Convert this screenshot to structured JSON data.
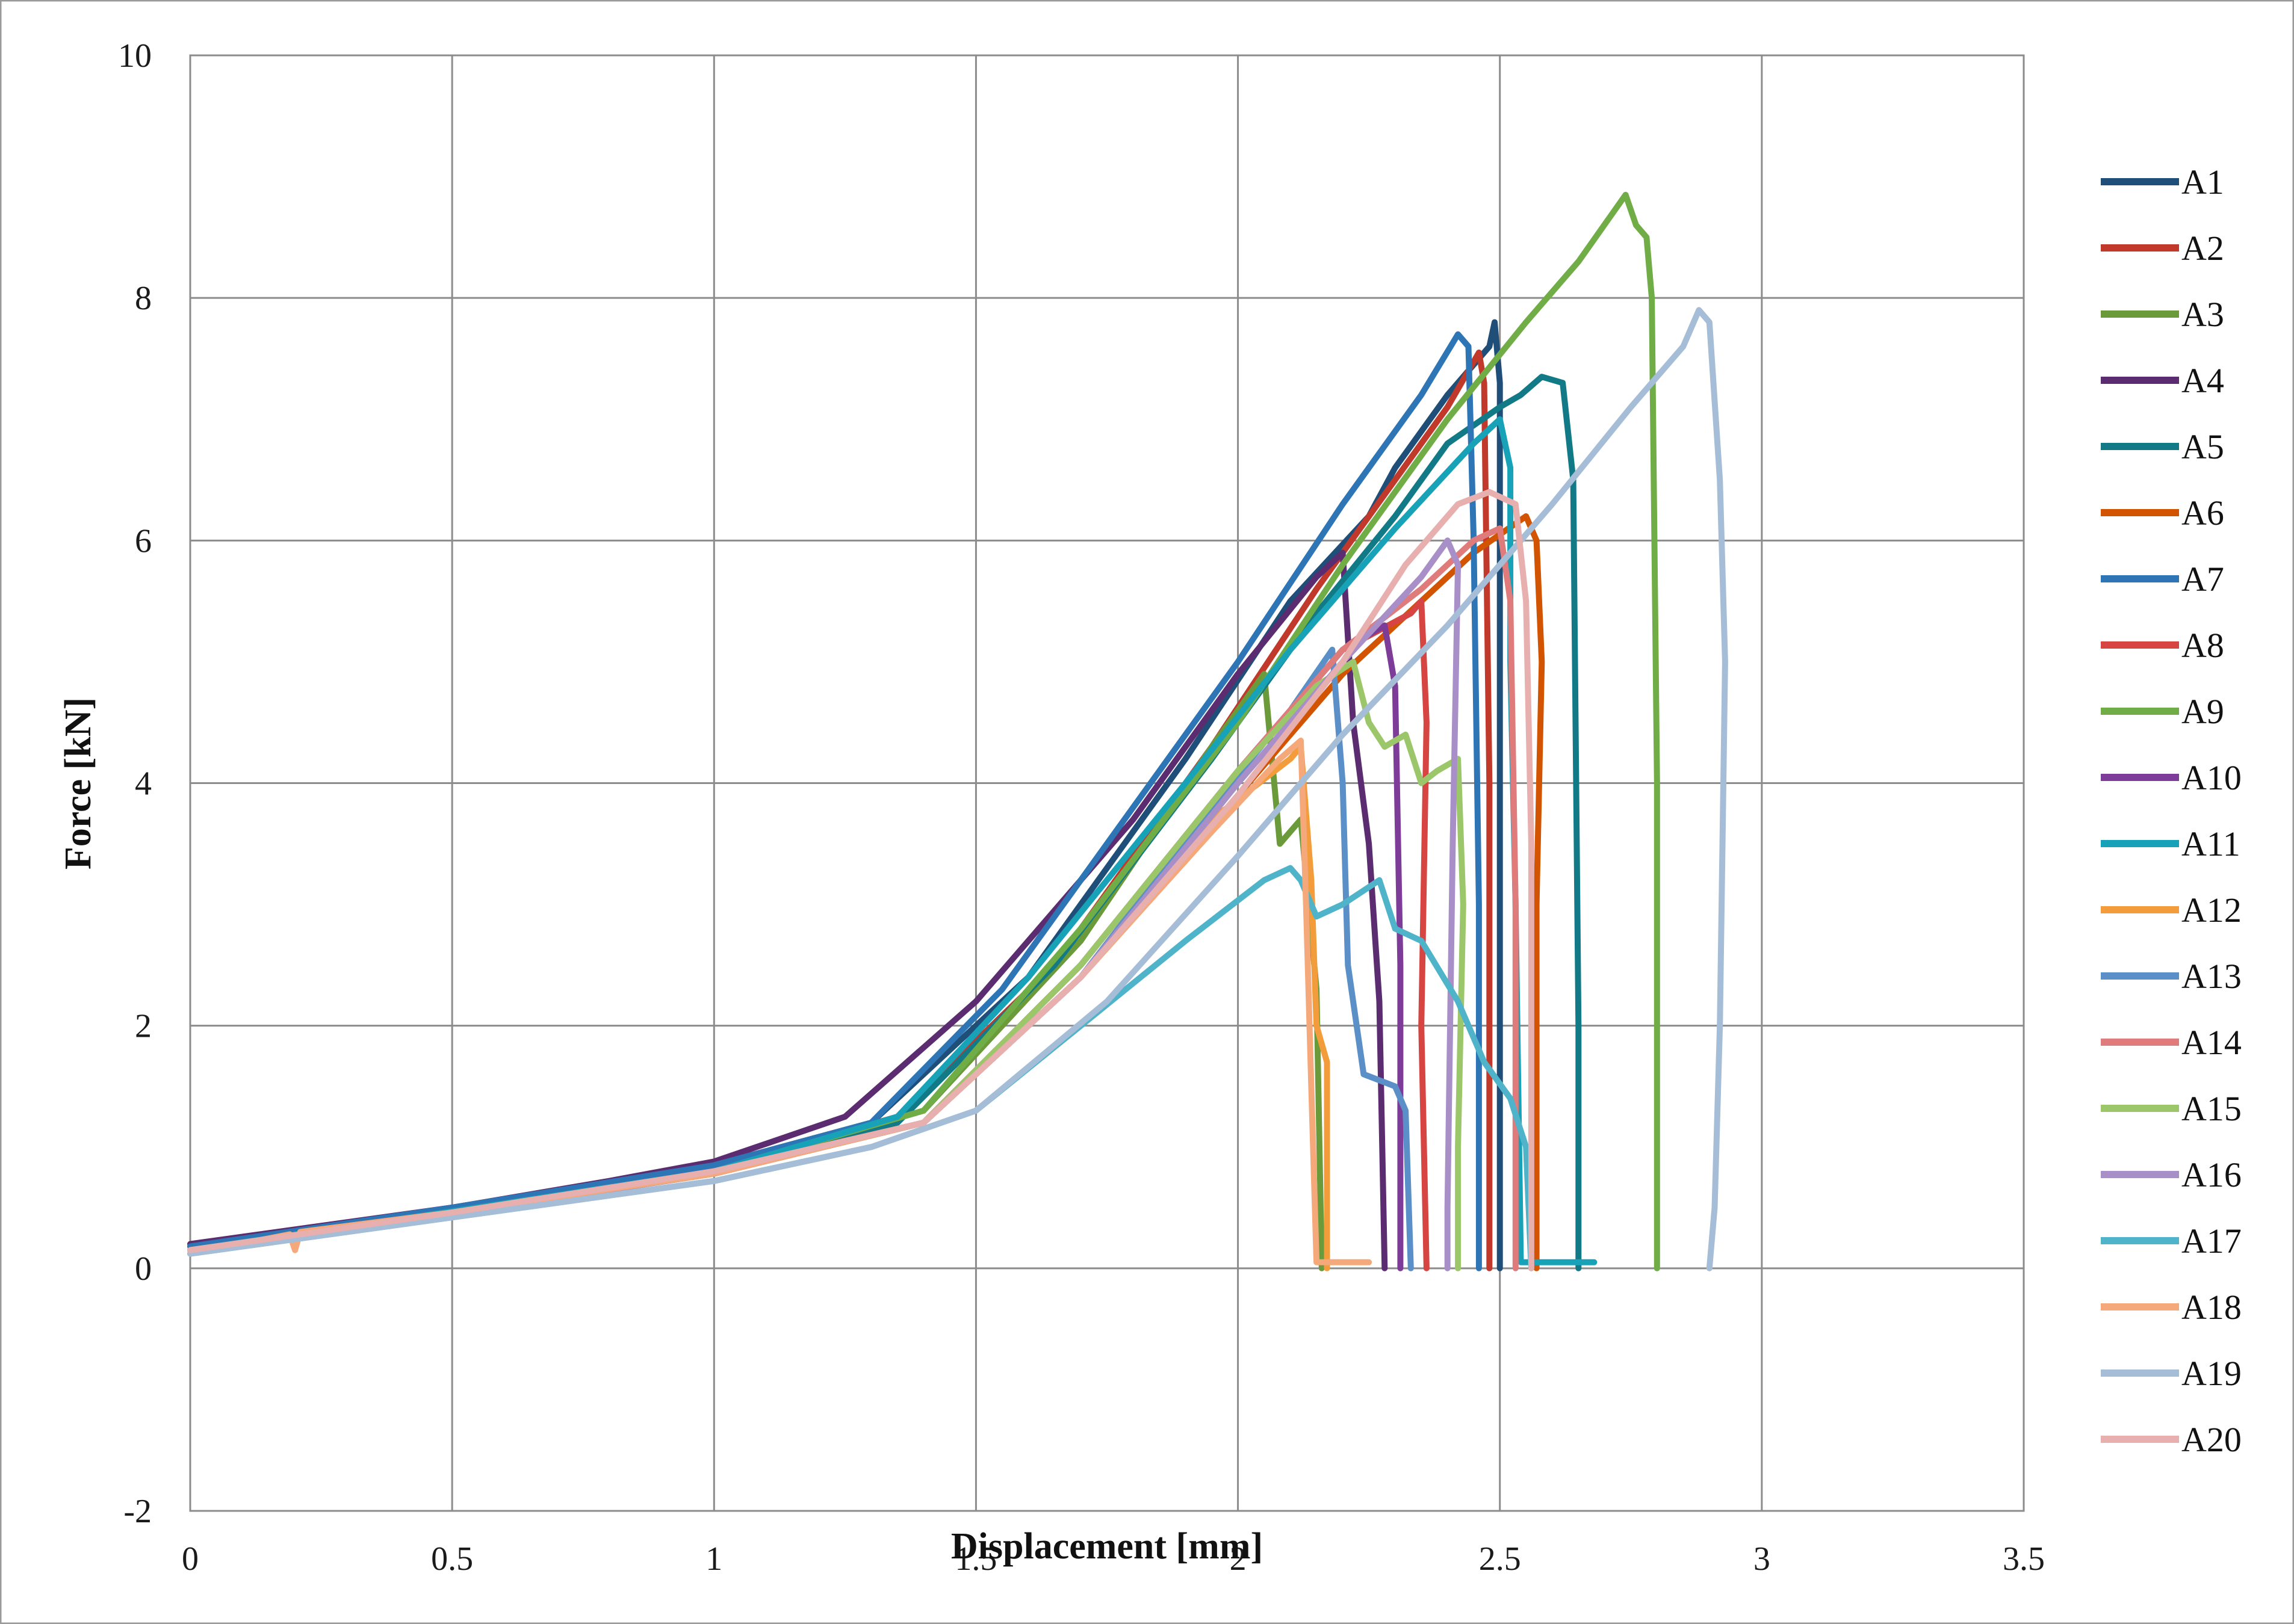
{
  "chart_data": {
    "type": "line",
    "title": "",
    "xlabel": "Displacement [mm]",
    "ylabel": "Force [kN]",
    "xlim": [
      0,
      3.5
    ],
    "ylim": [
      -2,
      10
    ],
    "xticks": [
      "0",
      "0.5",
      "1",
      "1.5",
      "2",
      "2.5",
      "3",
      "3.5"
    ],
    "yticks": [
      "-2",
      "0",
      "2",
      "4",
      "6",
      "8",
      "10"
    ],
    "grid": true,
    "legend_position": "right",
    "series": [
      {
        "name": "A1",
        "color": "#1F4E79",
        "points": [
          [
            0,
            0.18
          ],
          [
            0.5,
            0.5
          ],
          [
            1,
            0.85
          ],
          [
            1.3,
            1.2
          ],
          [
            1.6,
            2.4
          ],
          [
            1.9,
            4.2
          ],
          [
            2.1,
            5.5
          ],
          [
            2.25,
            6.2
          ],
          [
            2.3,
            6.6
          ],
          [
            2.4,
            7.2
          ],
          [
            2.48,
            7.6
          ],
          [
            2.49,
            7.8
          ],
          [
            2.5,
            7.3
          ],
          [
            2.5,
            2.0
          ],
          [
            2.5,
            0.0
          ]
        ]
      },
      {
        "name": "A2",
        "color": "#C0392B",
        "points": [
          [
            0,
            0.15
          ],
          [
            0.5,
            0.48
          ],
          [
            1,
            0.82
          ],
          [
            1.35,
            1.25
          ],
          [
            1.65,
            2.5
          ],
          [
            1.95,
            4.3
          ],
          [
            2.15,
            5.6
          ],
          [
            2.3,
            6.5
          ],
          [
            2.4,
            7.1
          ],
          [
            2.46,
            7.55
          ],
          [
            2.47,
            7.3
          ],
          [
            2.48,
            4.0
          ],
          [
            2.48,
            0.0
          ]
        ]
      },
      {
        "name": "A3",
        "color": "#6A9A3A",
        "points": [
          [
            0,
            0.15
          ],
          [
            0.5,
            0.46
          ],
          [
            1,
            0.8
          ],
          [
            1.4,
            1.3
          ],
          [
            1.7,
            2.7
          ],
          [
            1.95,
            4.3
          ],
          [
            2.05,
            4.9
          ],
          [
            2.08,
            3.5
          ],
          [
            2.12,
            3.7
          ],
          [
            2.15,
            2.3
          ],
          [
            2.16,
            0.0
          ]
        ]
      },
      {
        "name": "A4",
        "color": "#5B2C6F",
        "points": [
          [
            0,
            0.2
          ],
          [
            0.5,
            0.5
          ],
          [
            0.8,
            0.72
          ],
          [
            1,
            0.88
          ],
          [
            1.25,
            1.25
          ],
          [
            1.5,
            2.2
          ],
          [
            1.8,
            3.7
          ],
          [
            2.0,
            4.9
          ],
          [
            2.15,
            5.7
          ],
          [
            2.2,
            5.9
          ],
          [
            2.22,
            4.5
          ],
          [
            2.25,
            3.5
          ],
          [
            2.27,
            2.2
          ],
          [
            2.28,
            0.0
          ]
        ]
      },
      {
        "name": "A5",
        "color": "#127A87",
        "points": [
          [
            0,
            0.15
          ],
          [
            0.5,
            0.47
          ],
          [
            1,
            0.8
          ],
          [
            1.35,
            1.2
          ],
          [
            1.65,
            2.5
          ],
          [
            1.95,
            4.2
          ],
          [
            2.15,
            5.4
          ],
          [
            2.3,
            6.2
          ],
          [
            2.4,
            6.8
          ],
          [
            2.5,
            7.1
          ],
          [
            2.54,
            7.2
          ],
          [
            2.58,
            7.35
          ],
          [
            2.62,
            7.3
          ],
          [
            2.64,
            6.5
          ],
          [
            2.65,
            2.0
          ],
          [
            2.65,
            0.0
          ]
        ]
      },
      {
        "name": "A6",
        "color": "#D35400",
        "points": [
          [
            0,
            0.15
          ],
          [
            0.5,
            0.45
          ],
          [
            1,
            0.78
          ],
          [
            1.4,
            1.2
          ],
          [
            1.7,
            2.4
          ],
          [
            2.0,
            3.9
          ],
          [
            2.2,
            4.9
          ],
          [
            2.35,
            5.5
          ],
          [
            2.45,
            5.9
          ],
          [
            2.55,
            6.2
          ],
          [
            2.57,
            6.0
          ],
          [
            2.58,
            5.0
          ],
          [
            2.57,
            3.0
          ],
          [
            2.57,
            0.0
          ]
        ]
      },
      {
        "name": "A7",
        "color": "#2E75B6",
        "points": [
          [
            0,
            0.18
          ],
          [
            0.5,
            0.5
          ],
          [
            1,
            0.85
          ],
          [
            1.3,
            1.2
          ],
          [
            1.55,
            2.3
          ],
          [
            1.8,
            3.8
          ],
          [
            2.0,
            5.0
          ],
          [
            2.2,
            6.3
          ],
          [
            2.35,
            7.2
          ],
          [
            2.42,
            7.7
          ],
          [
            2.44,
            7.6
          ],
          [
            2.45,
            6.0
          ],
          [
            2.46,
            3.0
          ],
          [
            2.46,
            0.0
          ]
        ]
      },
      {
        "name": "A8",
        "color": "#D64541",
        "points": [
          [
            0,
            0.15
          ],
          [
            0.5,
            0.46
          ],
          [
            1,
            0.8
          ],
          [
            1.4,
            1.2
          ],
          [
            1.7,
            2.5
          ],
          [
            2.0,
            4.1
          ],
          [
            2.2,
            5.1
          ],
          [
            2.33,
            5.4
          ],
          [
            2.35,
            5.5
          ],
          [
            2.36,
            4.5
          ],
          [
            2.35,
            2.0
          ],
          [
            2.36,
            0.0
          ]
        ]
      },
      {
        "name": "A9",
        "color": "#70AD47",
        "points": [
          [
            0,
            0.15
          ],
          [
            0.5,
            0.46
          ],
          [
            1,
            0.8
          ],
          [
            1.4,
            1.3
          ],
          [
            1.7,
            2.8
          ],
          [
            2.0,
            4.5
          ],
          [
            2.2,
            5.8
          ],
          [
            2.4,
            7.0
          ],
          [
            2.55,
            7.8
          ],
          [
            2.65,
            8.3
          ],
          [
            2.74,
            8.85
          ],
          [
            2.76,
            8.6
          ],
          [
            2.78,
            8.5
          ],
          [
            2.79,
            8.0
          ],
          [
            2.8,
            4.0
          ],
          [
            2.8,
            0.0
          ]
        ]
      },
      {
        "name": "A10",
        "color": "#7D3C98",
        "points": [
          [
            0,
            0.15
          ],
          [
            0.5,
            0.45
          ],
          [
            1,
            0.8
          ],
          [
            1.4,
            1.2
          ],
          [
            1.7,
            2.5
          ],
          [
            2.0,
            4.1
          ],
          [
            2.2,
            5.1
          ],
          [
            2.28,
            5.3
          ],
          [
            2.3,
            4.8
          ],
          [
            2.31,
            2.5
          ],
          [
            2.31,
            0.0
          ]
        ]
      },
      {
        "name": "A11",
        "color": "#17A2B8",
        "points": [
          [
            0,
            0.15
          ],
          [
            0.5,
            0.47
          ],
          [
            1,
            0.8
          ],
          [
            1.35,
            1.25
          ],
          [
            1.6,
            2.4
          ],
          [
            1.9,
            4.0
          ],
          [
            2.1,
            5.1
          ],
          [
            2.3,
            6.1
          ],
          [
            2.45,
            6.8
          ],
          [
            2.5,
            7.0
          ],
          [
            2.52,
            6.6
          ],
          [
            2.52,
            5.0
          ],
          [
            2.53,
            3.0
          ],
          [
            2.54,
            0.05
          ],
          [
            2.6,
            0.05
          ],
          [
            2.68,
            0.05
          ]
        ]
      },
      {
        "name": "A12",
        "color": "#F39C3C",
        "points": [
          [
            0,
            0.12
          ],
          [
            0.5,
            0.45
          ],
          [
            1,
            0.78
          ],
          [
            1.4,
            1.2
          ],
          [
            1.7,
            2.4
          ],
          [
            1.95,
            3.7
          ],
          [
            2.1,
            4.2
          ],
          [
            2.12,
            4.3
          ],
          [
            2.14,
            3.2
          ],
          [
            2.15,
            2.0
          ],
          [
            2.17,
            1.7
          ],
          [
            2.17,
            0.0
          ]
        ]
      },
      {
        "name": "A13",
        "color": "#5B8FC7",
        "points": [
          [
            0,
            0.15
          ],
          [
            0.5,
            0.45
          ],
          [
            1,
            0.78
          ],
          [
            1.4,
            1.2
          ],
          [
            1.7,
            2.4
          ],
          [
            1.95,
            3.8
          ],
          [
            2.1,
            4.6
          ],
          [
            2.18,
            5.1
          ],
          [
            2.2,
            4.0
          ],
          [
            2.21,
            2.5
          ],
          [
            2.24,
            1.6
          ],
          [
            2.3,
            1.5
          ],
          [
            2.32,
            1.3
          ],
          [
            2.33,
            0.0
          ]
        ]
      },
      {
        "name": "A14",
        "color": "#E07B7B",
        "points": [
          [
            0,
            0.15
          ],
          [
            0.5,
            0.46
          ],
          [
            1,
            0.8
          ],
          [
            1.4,
            1.2
          ],
          [
            1.7,
            2.5
          ],
          [
            2.0,
            4.1
          ],
          [
            2.2,
            5.1
          ],
          [
            2.35,
            5.6
          ],
          [
            2.45,
            6.0
          ],
          [
            2.5,
            6.1
          ],
          [
            2.52,
            5.5
          ],
          [
            2.53,
            3.0
          ],
          [
            2.53,
            0.0
          ]
        ]
      },
      {
        "name": "A15",
        "color": "#9BC76A",
        "points": [
          [
            0,
            0.15
          ],
          [
            0.5,
            0.45
          ],
          [
            1,
            0.78
          ],
          [
            1.4,
            1.2
          ],
          [
            1.7,
            2.5
          ],
          [
            2.0,
            4.1
          ],
          [
            2.15,
            4.8
          ],
          [
            2.22,
            5.0
          ],
          [
            2.25,
            4.5
          ],
          [
            2.28,
            4.3
          ],
          [
            2.32,
            4.4
          ],
          [
            2.35,
            4.0
          ],
          [
            2.38,
            4.1
          ],
          [
            2.42,
            4.2
          ],
          [
            2.43,
            3.0
          ],
          [
            2.42,
            1.0
          ],
          [
            2.42,
            0.0
          ]
        ]
      },
      {
        "name": "A16",
        "color": "#A98FC8",
        "points": [
          [
            0,
            0.15
          ],
          [
            0.5,
            0.45
          ],
          [
            1,
            0.78
          ],
          [
            1.4,
            1.2
          ],
          [
            1.7,
            2.4
          ],
          [
            2.0,
            4.0
          ],
          [
            2.2,
            5.0
          ],
          [
            2.35,
            5.7
          ],
          [
            2.4,
            6.0
          ],
          [
            2.42,
            5.8
          ],
          [
            2.41,
            3.5
          ],
          [
            2.4,
            0.5
          ],
          [
            2.4,
            0.0
          ]
        ]
      },
      {
        "name": "A17",
        "color": "#4FB3C9",
        "points": [
          [
            0,
            0.12
          ],
          [
            0.5,
            0.42
          ],
          [
            1,
            0.72
          ],
          [
            1.3,
            1.0
          ],
          [
            1.5,
            1.3
          ],
          [
            1.7,
            2.0
          ],
          [
            1.9,
            2.7
          ],
          [
            2.05,
            3.2
          ],
          [
            2.1,
            3.3
          ],
          [
            2.12,
            3.2
          ],
          [
            2.15,
            2.9
          ],
          [
            2.2,
            3.0
          ],
          [
            2.27,
            3.2
          ],
          [
            2.3,
            2.8
          ],
          [
            2.35,
            2.7
          ],
          [
            2.42,
            2.2
          ],
          [
            2.47,
            1.7
          ],
          [
            2.52,
            1.4
          ],
          [
            2.55,
            1.0
          ],
          [
            2.56,
            0.0
          ]
        ]
      },
      {
        "name": "A18",
        "color": "#F5A87A",
        "points": [
          [
            0,
            0.12
          ],
          [
            0.19,
            0.28
          ],
          [
            0.2,
            0.15
          ],
          [
            0.21,
            0.3
          ],
          [
            0.5,
            0.46
          ],
          [
            1,
            0.78
          ],
          [
            1.4,
            1.2
          ],
          [
            1.7,
            2.4
          ],
          [
            1.95,
            3.6
          ],
          [
            2.08,
            4.2
          ],
          [
            2.12,
            4.35
          ],
          [
            2.13,
            3.0
          ],
          [
            2.14,
            1.5
          ],
          [
            2.15,
            0.05
          ],
          [
            2.2,
            0.05
          ],
          [
            2.25,
            0.05
          ]
        ]
      },
      {
        "name": "A19",
        "color": "#A6BDD7",
        "points": [
          [
            0,
            0.12
          ],
          [
            0.5,
            0.42
          ],
          [
            1,
            0.72
          ],
          [
            1.3,
            1.0
          ],
          [
            1.5,
            1.3
          ],
          [
            1.75,
            2.2
          ],
          [
            2.0,
            3.4
          ],
          [
            2.2,
            4.4
          ],
          [
            2.4,
            5.3
          ],
          [
            2.6,
            6.3
          ],
          [
            2.75,
            7.1
          ],
          [
            2.85,
            7.6
          ],
          [
            2.88,
            7.9
          ],
          [
            2.9,
            7.8
          ],
          [
            2.92,
            6.5
          ],
          [
            2.93,
            5.0
          ],
          [
            2.92,
            2.0
          ],
          [
            2.91,
            0.5
          ],
          [
            2.9,
            0.0
          ]
        ]
      },
      {
        "name": "A20",
        "color": "#E8AFAF",
        "points": [
          [
            0,
            0.15
          ],
          [
            0.5,
            0.46
          ],
          [
            1,
            0.8
          ],
          [
            1.4,
            1.2
          ],
          [
            1.7,
            2.4
          ],
          [
            2.0,
            3.9
          ],
          [
            2.2,
            5.0
          ],
          [
            2.32,
            5.8
          ],
          [
            2.42,
            6.3
          ],
          [
            2.48,
            6.4
          ],
          [
            2.53,
            6.3
          ],
          [
            2.55,
            5.5
          ],
          [
            2.56,
            3.5
          ],
          [
            2.56,
            0.0
          ]
        ]
      }
    ]
  }
}
